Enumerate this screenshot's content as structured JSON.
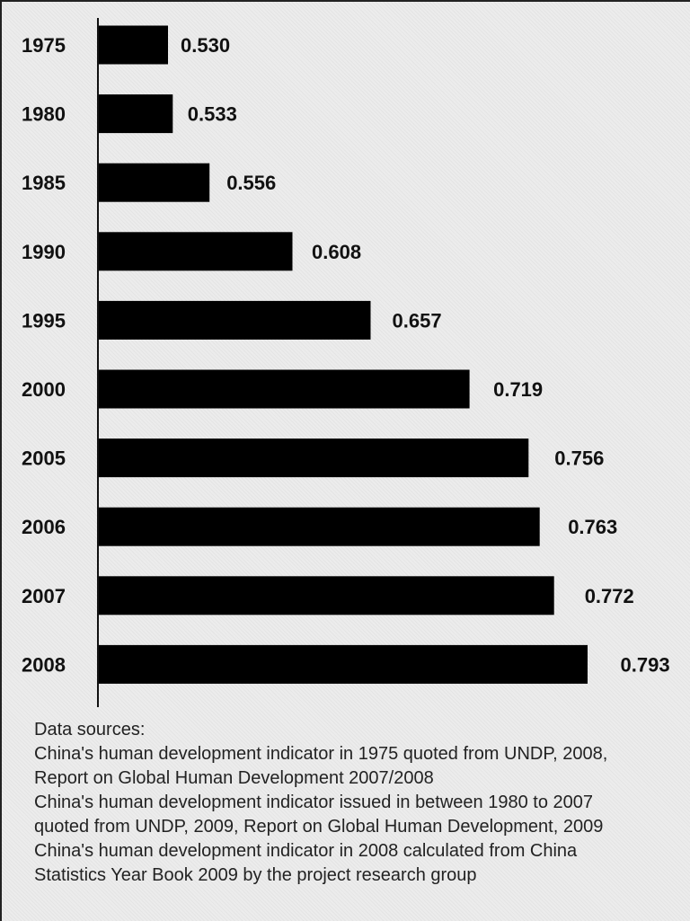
{
  "chart_data": {
    "type": "bar",
    "orientation": "horizontal",
    "categories": [
      "1975",
      "1980",
      "1985",
      "1990",
      "1995",
      "2000",
      "2005",
      "2006",
      "2007",
      "2008"
    ],
    "values": [
      0.53,
      0.533,
      0.556,
      0.608,
      0.657,
      0.719,
      0.756,
      0.763,
      0.772,
      0.793
    ],
    "value_labels": [
      "0.530",
      "0.533",
      "0.556",
      "0.608",
      "0.657",
      "0.719",
      "0.756",
      "0.763",
      "0.772",
      "0.793"
    ],
    "bar_color": "#000000",
    "grid": false,
    "legend": false
  },
  "notes": {
    "heading": "Data sources:",
    "lines": [
      "China's human development indicator in 1975 quoted from UNDP, 2008,",
      "Report on Global Human Development 2007/2008",
      "China's human development indicator issued in between 1980 to 2007",
      "quoted from UNDP, 2009, Report on Global Human Development, 2009",
      "China's human development indicator in 2008 calculated from China",
      "Statistics Year Book 2009 by the project research group"
    ]
  }
}
